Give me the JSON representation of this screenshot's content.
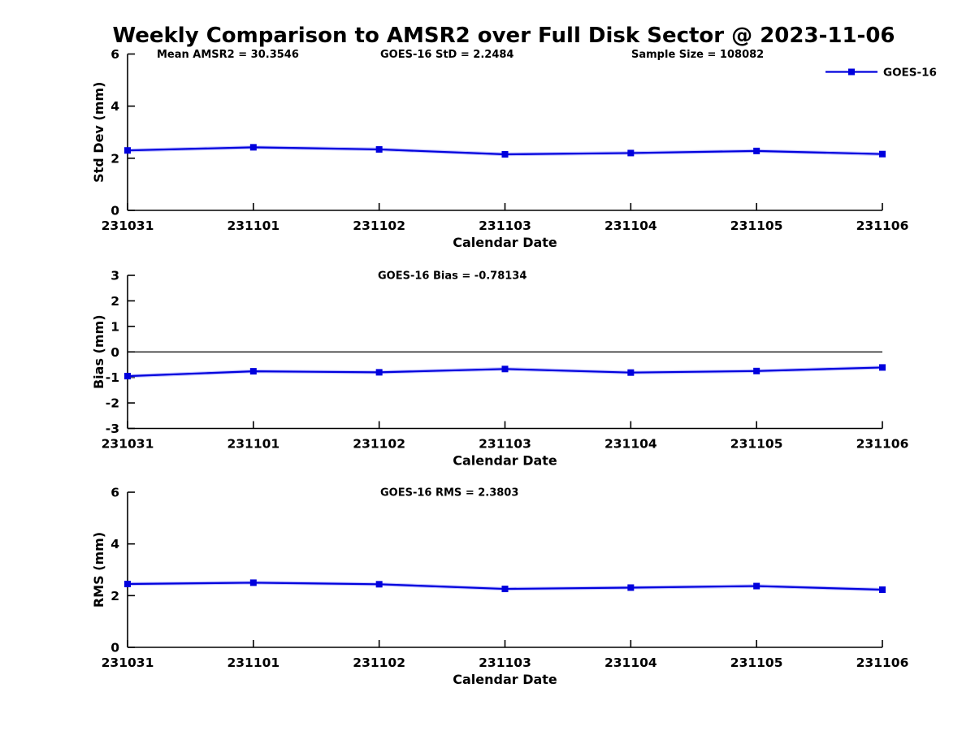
{
  "title": "Weekly Comparison to AMSR2 over Full Disk Sector @ 2023-11-06",
  "xlabel": "Calendar Date",
  "x_categories": [
    "231031",
    "231101",
    "231102",
    "231103",
    "231104",
    "231105",
    "231106"
  ],
  "legend": {
    "label": "GOES-16",
    "position": "top-right"
  },
  "colors": {
    "line": "#0000dd",
    "line_halo": "#8d8dff",
    "axis": "#000000",
    "text": "#000000",
    "background": "#ffffff"
  },
  "chart_data": [
    {
      "type": "line",
      "id": "std-dev",
      "ylabel": "Std Dev (mm)",
      "ylim": [
        0,
        6
      ],
      "yticks": [
        0,
        2,
        4,
        6
      ],
      "grid": false,
      "zero_line": false,
      "show_legend": true,
      "annotations": [
        {
          "text": "Mean AMSR2 = 30.3546",
          "x": 193
        },
        {
          "text": "GOES-16 StD = 2.2484",
          "x": 468
        },
        {
          "text": "Sample Size = 108082",
          "x": 777
        }
      ],
      "series": [
        {
          "name": "GOES-16",
          "values": [
            2.3,
            2.42,
            2.34,
            2.15,
            2.2,
            2.28,
            2.16
          ]
        }
      ]
    },
    {
      "type": "line",
      "id": "bias",
      "ylabel": "Bias (mm)",
      "ylim": [
        -3,
        3
      ],
      "yticks": [
        -3,
        -2,
        -1,
        0,
        1,
        2,
        3
      ],
      "grid": false,
      "zero_line": true,
      "show_legend": false,
      "annotations": [
        {
          "text": "GOES-16 Bias  = -0.78134",
          "x": 465
        }
      ],
      "series": [
        {
          "name": "GOES-16",
          "values": [
            -0.95,
            -0.76,
            -0.8,
            -0.67,
            -0.81,
            -0.75,
            -0.61
          ]
        }
      ]
    },
    {
      "type": "line",
      "id": "rms",
      "ylabel": "RMS (mm)",
      "ylim": [
        0,
        6
      ],
      "yticks": [
        0,
        2,
        4,
        6
      ],
      "grid": false,
      "zero_line": false,
      "show_legend": false,
      "annotations": [
        {
          "text": "GOES-16 RMS = 2.3803",
          "x": 468
        }
      ],
      "series": [
        {
          "name": "GOES-16",
          "values": [
            2.45,
            2.5,
            2.44,
            2.26,
            2.31,
            2.37,
            2.23
          ]
        }
      ]
    }
  ]
}
